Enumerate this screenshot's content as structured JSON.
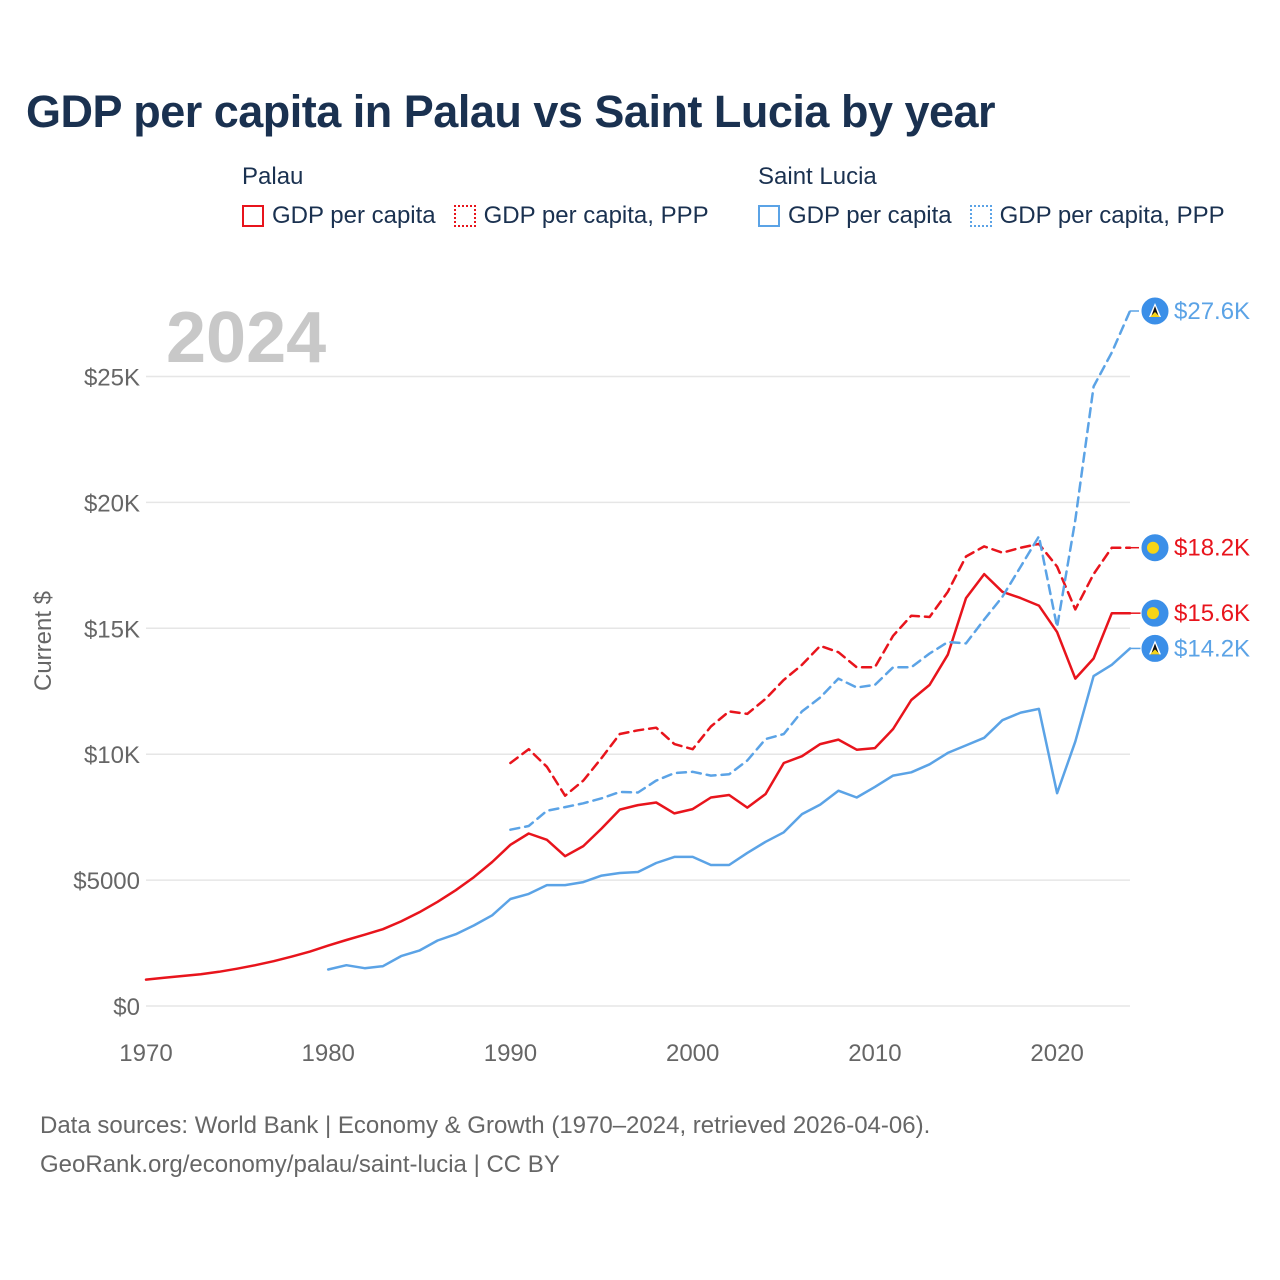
{
  "chart_data": {
    "type": "line",
    "title": "GDP per capita in Palau vs Saint Lucia by year",
    "year_watermark": "2024",
    "ylabel": "Current $",
    "xlabel": "",
    "xlim": [
      1970,
      2024
    ],
    "ylim": [
      0,
      27600
    ],
    "x_ticks": [
      1970,
      1980,
      1990,
      2000,
      2010,
      2020
    ],
    "x_tick_labels": [
      "1970",
      "1980",
      "1990",
      "2000",
      "2010",
      "2020"
    ],
    "y_ticks": [
      0,
      5000,
      10000,
      15000,
      20000,
      25000
    ],
    "y_tick_labels": [
      "$0",
      "$5000",
      "$10K",
      "$15K",
      "$20K",
      "$25K"
    ],
    "grid": true,
    "legend": {
      "placement": "top",
      "groups": [
        {
          "name": "Palau",
          "entries": [
            "GDP per capita",
            "GDP per capita, PPP"
          ]
        },
        {
          "name": "Saint Lucia",
          "entries": [
            "GDP per capita",
            "GDP per capita, PPP"
          ]
        }
      ]
    },
    "series": [
      {
        "id": "palau-gdp",
        "name": "Palau GDP per capita",
        "country": "Palau",
        "color": "#e8141c",
        "dash": "solid",
        "end_label": "$15.6K",
        "x": [
          1970,
          1971,
          1972,
          1973,
          1974,
          1975,
          1976,
          1977,
          1978,
          1979,
          1980,
          1981,
          1982,
          1983,
          1984,
          1985,
          1986,
          1987,
          1988,
          1989,
          1990,
          1991,
          1992,
          1993,
          1994,
          1995,
          1996,
          1997,
          1998,
          1999,
          2000,
          2001,
          2002,
          2003,
          2004,
          2005,
          2006,
          2007,
          2008,
          2009,
          2010,
          2011,
          2012,
          2013,
          2014,
          2015,
          2016,
          2017,
          2018,
          2019,
          2020,
          2021,
          2022,
          2023,
          2024
        ],
        "values": [
          1050,
          1120,
          1190,
          1260,
          1360,
          1480,
          1620,
          1780,
          1960,
          2160,
          2400,
          2620,
          2830,
          3050,
          3360,
          3720,
          4140,
          4600,
          5120,
          5720,
          6400,
          6850,
          6600,
          5950,
          6350,
          7050,
          7800,
          7980,
          8080,
          7650,
          7820,
          8280,
          8380,
          7880,
          8420,
          9650,
          9920,
          10400,
          10580,
          10180,
          10240,
          11000,
          12150,
          12750,
          13950,
          16200,
          17150,
          16450,
          16200,
          15900,
          14850,
          13000,
          13800,
          15600,
          15600
        ]
      },
      {
        "id": "palau-ppp",
        "name": "Palau GDP per capita, PPP",
        "country": "Palau",
        "color": "#e8141c",
        "dash": "dashed",
        "end_label": "$18.2K",
        "x": [
          1990,
          1991,
          1992,
          1993,
          1994,
          1995,
          1996,
          1997,
          1998,
          1999,
          2000,
          2001,
          2002,
          2003,
          2004,
          2005,
          2006,
          2007,
          2008,
          2009,
          2010,
          2011,
          2012,
          2013,
          2014,
          2015,
          2016,
          2017,
          2018,
          2019,
          2020,
          2021,
          2022,
          2023,
          2024
        ],
        "values": [
          9650,
          10200,
          9500,
          8350,
          8950,
          9850,
          10800,
          10950,
          11050,
          10400,
          10200,
          11100,
          11700,
          11600,
          12200,
          12950,
          13550,
          14300,
          14050,
          13450,
          13450,
          14700,
          15500,
          15450,
          16450,
          17850,
          18250,
          18000,
          18200,
          18350,
          17450,
          15750,
          17150,
          18200,
          18200
        ]
      },
      {
        "id": "lucia-gdp",
        "name": "Saint Lucia GDP per capita",
        "country": "Saint Lucia",
        "color": "#5ba3e6",
        "dash": "solid",
        "end_label": "$14.2K",
        "x": [
          1980,
          1981,
          1982,
          1983,
          1984,
          1985,
          1986,
          1987,
          1988,
          1989,
          1990,
          1991,
          1992,
          1993,
          1994,
          1995,
          1996,
          1997,
          1998,
          1999,
          2000,
          2001,
          2002,
          2003,
          2004,
          2005,
          2006,
          2007,
          2008,
          2009,
          2010,
          2011,
          2012,
          2013,
          2014,
          2015,
          2016,
          2017,
          2018,
          2019,
          2020,
          2021,
          2022,
          2023,
          2024
        ],
        "values": [
          1450,
          1620,
          1500,
          1580,
          1980,
          2200,
          2600,
          2850,
          3200,
          3600,
          4250,
          4450,
          4800,
          4800,
          4920,
          5180,
          5280,
          5320,
          5680,
          5920,
          5920,
          5600,
          5600,
          6080,
          6520,
          6900,
          7620,
          8000,
          8550,
          8280,
          8700,
          9150,
          9280,
          9600,
          10050,
          10350,
          10650,
          11350,
          11650,
          11800,
          8450,
          10500,
          13100,
          13550,
          14200
        ]
      },
      {
        "id": "lucia-ppp",
        "name": "Saint Lucia GDP per capita, PPP",
        "country": "Saint Lucia",
        "color": "#5ba3e6",
        "dash": "dashed",
        "end_label": "$27.6K",
        "x": [
          1990,
          1991,
          1992,
          1993,
          1994,
          1995,
          1996,
          1997,
          1998,
          1999,
          2000,
          2001,
          2002,
          2003,
          2004,
          2005,
          2006,
          2007,
          2008,
          2009,
          2010,
          2011,
          2012,
          2013,
          2014,
          2015,
          2016,
          2017,
          2018,
          2019,
          2020,
          2021,
          2022,
          2023,
          2024
        ],
        "values": [
          7000,
          7150,
          7750,
          7900,
          8050,
          8250,
          8500,
          8480,
          8950,
          9250,
          9300,
          9150,
          9200,
          9750,
          10600,
          10800,
          11700,
          12250,
          13000,
          12650,
          12750,
          13450,
          13450,
          14000,
          14450,
          14400,
          15350,
          16250,
          17450,
          18650,
          15050,
          19300,
          24600,
          25950,
          27600
        ]
      }
    ]
  },
  "legend_labels": {
    "palau_group": "Palau",
    "palau_gdp": "GDP per capita",
    "palau_ppp": "GDP per capita, PPP",
    "lucia_group": "Saint Lucia",
    "lucia_gdp": "GDP per capita",
    "lucia_ppp": "GDP per capita, PPP"
  },
  "footer": {
    "line1": "Data sources: World Bank | Economy & Growth (1970–2024, retrieved 2026-04-06).",
    "line2": "GeoRank.org/economy/palau/saint-lucia | CC BY"
  },
  "colors": {
    "palau": "#e8141c",
    "saint_lucia": "#5ba3e6",
    "title": "#1a3150",
    "axis_text": "#666666",
    "grid": "#e6e6e6",
    "watermark": "#c8c8c8",
    "flag_blue": "#3b8fe8",
    "flag_yellow": "#f7d417"
  },
  "flags": {
    "palau": "palau-flag-icon",
    "saint_lucia": "saint-lucia-flag-icon"
  }
}
